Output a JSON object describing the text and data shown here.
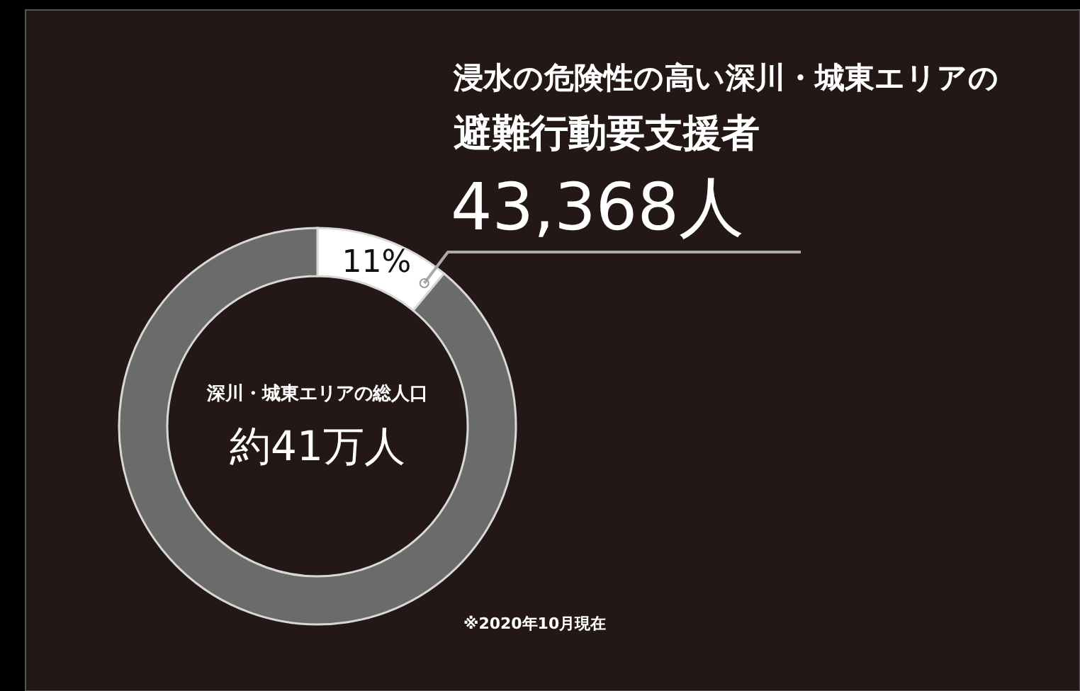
{
  "chart_data": {
    "type": "donut",
    "title": "浸水の危険性の高い深川・城東エリアの",
    "subtitle": "避難行動要支援者",
    "categories": [
      null,
      null
    ],
    "values": [
      11,
      89
    ],
    "colors": [
      "#ffffff",
      "#6b6b6b"
    ],
    "value_labels": [
      "11%",
      null
    ],
    "annotations": [
      "43,368人",
      "深川・城東エリアの総人口",
      "約41万人",
      "※2020年10月現在"
    ]
  }
}
